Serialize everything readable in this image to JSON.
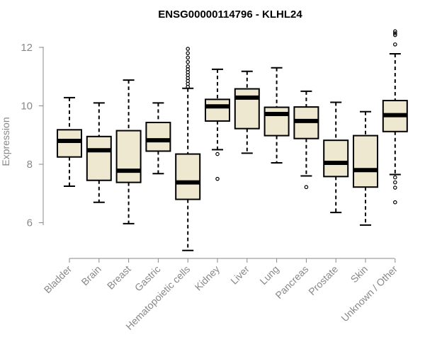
{
  "chart_data": {
    "type": "box",
    "title": "ENSG00000114796 - KLHL24",
    "xlabel": "",
    "ylabel": "Expression",
    "ylim": [
      4.9,
      12.7
    ],
    "yticks": [
      6,
      8,
      10,
      12
    ],
    "ytick_labels": [
      "6",
      "8",
      "10",
      "12"
    ],
    "grid": false,
    "colors": {
      "box_fill": "#efe8d0",
      "box_stroke": "#000000",
      "axis": "#888888",
      "text": "#888888",
      "title": "#000000"
    },
    "categories": [
      "Bladder",
      "Brain",
      "Breast",
      "Gastric",
      "Hematopoietic cells",
      "Kidney",
      "Liver",
      "Lung",
      "Pancreas",
      "Prostate",
      "Skin",
      "Unknown / Other"
    ],
    "series": [
      {
        "name": "Bladder",
        "min": 7.25,
        "q1": 8.25,
        "median": 8.8,
        "q3": 9.18,
        "max": 10.28,
        "outliers": []
      },
      {
        "name": "Brain",
        "min": 6.7,
        "q1": 7.45,
        "median": 8.48,
        "q3": 8.95,
        "max": 10.1,
        "outliers": []
      },
      {
        "name": "Breast",
        "min": 5.97,
        "q1": 7.38,
        "median": 7.78,
        "q3": 9.15,
        "max": 10.88,
        "outliers": []
      },
      {
        "name": "Gastric",
        "min": 7.68,
        "q1": 8.45,
        "median": 8.82,
        "q3": 9.43,
        "max": 10.1,
        "outliers": []
      },
      {
        "name": "Hematopoietic cells",
        "min": 5.05,
        "q1": 6.8,
        "median": 7.38,
        "q3": 8.35,
        "max": 10.6,
        "outliers": [
          10.65,
          10.75,
          10.85,
          10.95,
          11.05,
          11.15,
          11.25,
          11.35,
          11.5,
          11.65,
          11.8,
          11.95
        ]
      },
      {
        "name": "Kidney",
        "min": 8.5,
        "q1": 9.48,
        "median": 9.98,
        "q3": 10.22,
        "max": 11.25,
        "outliers": [
          8.35,
          7.5
        ]
      },
      {
        "name": "Liver",
        "min": 8.38,
        "q1": 9.22,
        "median": 10.28,
        "q3": 10.58,
        "max": 11.18,
        "outliers": []
      },
      {
        "name": "Lung",
        "min": 8.05,
        "q1": 8.98,
        "median": 9.72,
        "q3": 9.95,
        "max": 11.3,
        "outliers": []
      },
      {
        "name": "Pancreas",
        "min": 7.6,
        "q1": 8.88,
        "median": 9.48,
        "q3": 9.96,
        "max": 10.5,
        "outliers": [
          7.22
        ]
      },
      {
        "name": "Prostate",
        "min": 6.35,
        "q1": 7.58,
        "median": 8.05,
        "q3": 8.82,
        "max": 10.12,
        "outliers": []
      },
      {
        "name": "Skin",
        "min": 5.92,
        "q1": 7.22,
        "median": 7.8,
        "q3": 8.98,
        "max": 9.8,
        "outliers": []
      },
      {
        "name": "Unknown / Other",
        "min": 7.65,
        "q1": 9.12,
        "median": 9.68,
        "q3": 10.18,
        "max": 11.78,
        "outliers": [
          12.1,
          12.42,
          12.48,
          12.55,
          7.55,
          7.38,
          7.2,
          6.7
        ]
      }
    ]
  }
}
